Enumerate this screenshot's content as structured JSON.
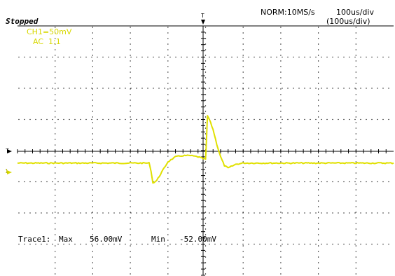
{
  "status": "Stopped",
  "acquisition": {
    "mode_rate": "NORM:10MS/s"
  },
  "timebase": {
    "main": "100us/div",
    "secondary": "(100us/div)"
  },
  "channel1": {
    "scale": "CH1=50mV",
    "coupling": "AC  1:1",
    "trace_color": "#e0e000"
  },
  "markers": {
    "trigger_top": "T",
    "trigger_level": "T",
    "ch1_ground": "1"
  },
  "measurement": {
    "label": "Trace1:",
    "max_label": "Max",
    "max_value": "56.00mV",
    "min_label": "Min",
    "min_value": "-52.00mV"
  },
  "chart_data": {
    "type": "line",
    "title": "",
    "xlabel": "",
    "ylabel": "",
    "x_unit": "us",
    "y_unit": "mV",
    "xlim": [
      -500,
      500
    ],
    "ylim": [
      -200,
      200
    ],
    "grid": true,
    "series": [
      {
        "color": "#e0e000",
        "x": [
          -500,
          -360,
          -200,
          -150,
          -145,
          -140,
          -130,
          -120,
          -110,
          -100,
          -80,
          -60,
          -40,
          -20,
          -10,
          0,
          2,
          5,
          10,
          20,
          30,
          40,
          50,
          60,
          80,
          100,
          150,
          200,
          300,
          400,
          500
        ],
        "y": [
          -20,
          -20,
          -20,
          -20,
          -32,
          -52,
          -48,
          -38,
          -28,
          -18,
          -10,
          -8,
          -8,
          -10,
          -12,
          -14,
          10,
          56,
          50,
          34,
          10,
          -10,
          -24,
          -28,
          -22,
          -20,
          -20,
          -20,
          -20,
          -20,
          -20
        ]
      }
    ]
  }
}
